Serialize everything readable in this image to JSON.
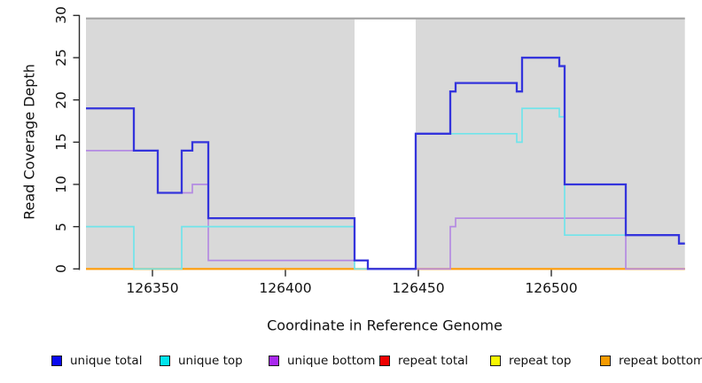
{
  "chart_data": {
    "type": "line",
    "subtype": "step-coverage",
    "title": "",
    "xlabel": "Coordinate in Reference Genome",
    "ylabel": "Read Coverage Depth",
    "xlim": [
      126325,
      126550
    ],
    "ylim": [
      0,
      30
    ],
    "xticks": [
      126350,
      126400,
      126450,
      126500
    ],
    "yticks": [
      0,
      5,
      10,
      15,
      20,
      25,
      30
    ],
    "grid": "off",
    "plot_background": "#d9d9d9",
    "coverage_gap": {
      "from": 126426,
      "to": 126449
    },
    "gap_top_bar_color": "#a6a6a6",
    "legend_position": "bottom",
    "series": [
      {
        "name": "unique total",
        "color": "#3434dc",
        "swatch_color": "#0a0af0",
        "steps": [
          [
            126325,
            19
          ],
          [
            126343,
            14
          ],
          [
            126352,
            9
          ],
          [
            126361,
            14
          ],
          [
            126365,
            15
          ],
          [
            126371,
            6
          ],
          [
            126426,
            1
          ],
          [
            126431,
            0
          ],
          [
            126449,
            16
          ],
          [
            126462,
            21
          ],
          [
            126464,
            22
          ],
          [
            126487,
            21
          ],
          [
            126489,
            25
          ],
          [
            126503,
            24
          ],
          [
            126505,
            10
          ],
          [
            126528,
            4
          ],
          [
            126548,
            3
          ]
        ]
      },
      {
        "name": "unique top",
        "color": "#70e4ea",
        "swatch_color": "#00e4ee",
        "steps": [
          [
            126325,
            5
          ],
          [
            126343,
            0
          ],
          [
            126361,
            5
          ],
          [
            126426,
            0
          ],
          [
            126449,
            16
          ],
          [
            126487,
            15
          ],
          [
            126489,
            19
          ],
          [
            126503,
            18
          ],
          [
            126505,
            4
          ],
          [
            126548,
            3
          ]
        ]
      },
      {
        "name": "unique bottom",
        "color": "#b48ae2",
        "swatch_color": "#a928ef",
        "steps": [
          [
            126325,
            14
          ],
          [
            126352,
            9
          ],
          [
            126365,
            10
          ],
          [
            126371,
            1
          ],
          [
            126431,
            0
          ],
          [
            126462,
            5
          ],
          [
            126464,
            6
          ],
          [
            126528,
            0
          ]
        ]
      },
      {
        "name": "repeat total",
        "color": "#e02020",
        "swatch_color": "#f00000",
        "steps": [
          [
            126325,
            0
          ]
        ]
      },
      {
        "name": "repeat top",
        "color": "#f5f500",
        "swatch_color": "#f7f700",
        "steps": [
          [
            126325,
            0
          ]
        ]
      },
      {
        "name": "repeat bottom",
        "color": "#ff9d0a",
        "swatch_color": "#f59b00",
        "steps": [
          [
            126325,
            0
          ]
        ]
      }
    ],
    "draw_order": [
      3,
      4,
      5,
      2,
      1,
      0
    ]
  }
}
